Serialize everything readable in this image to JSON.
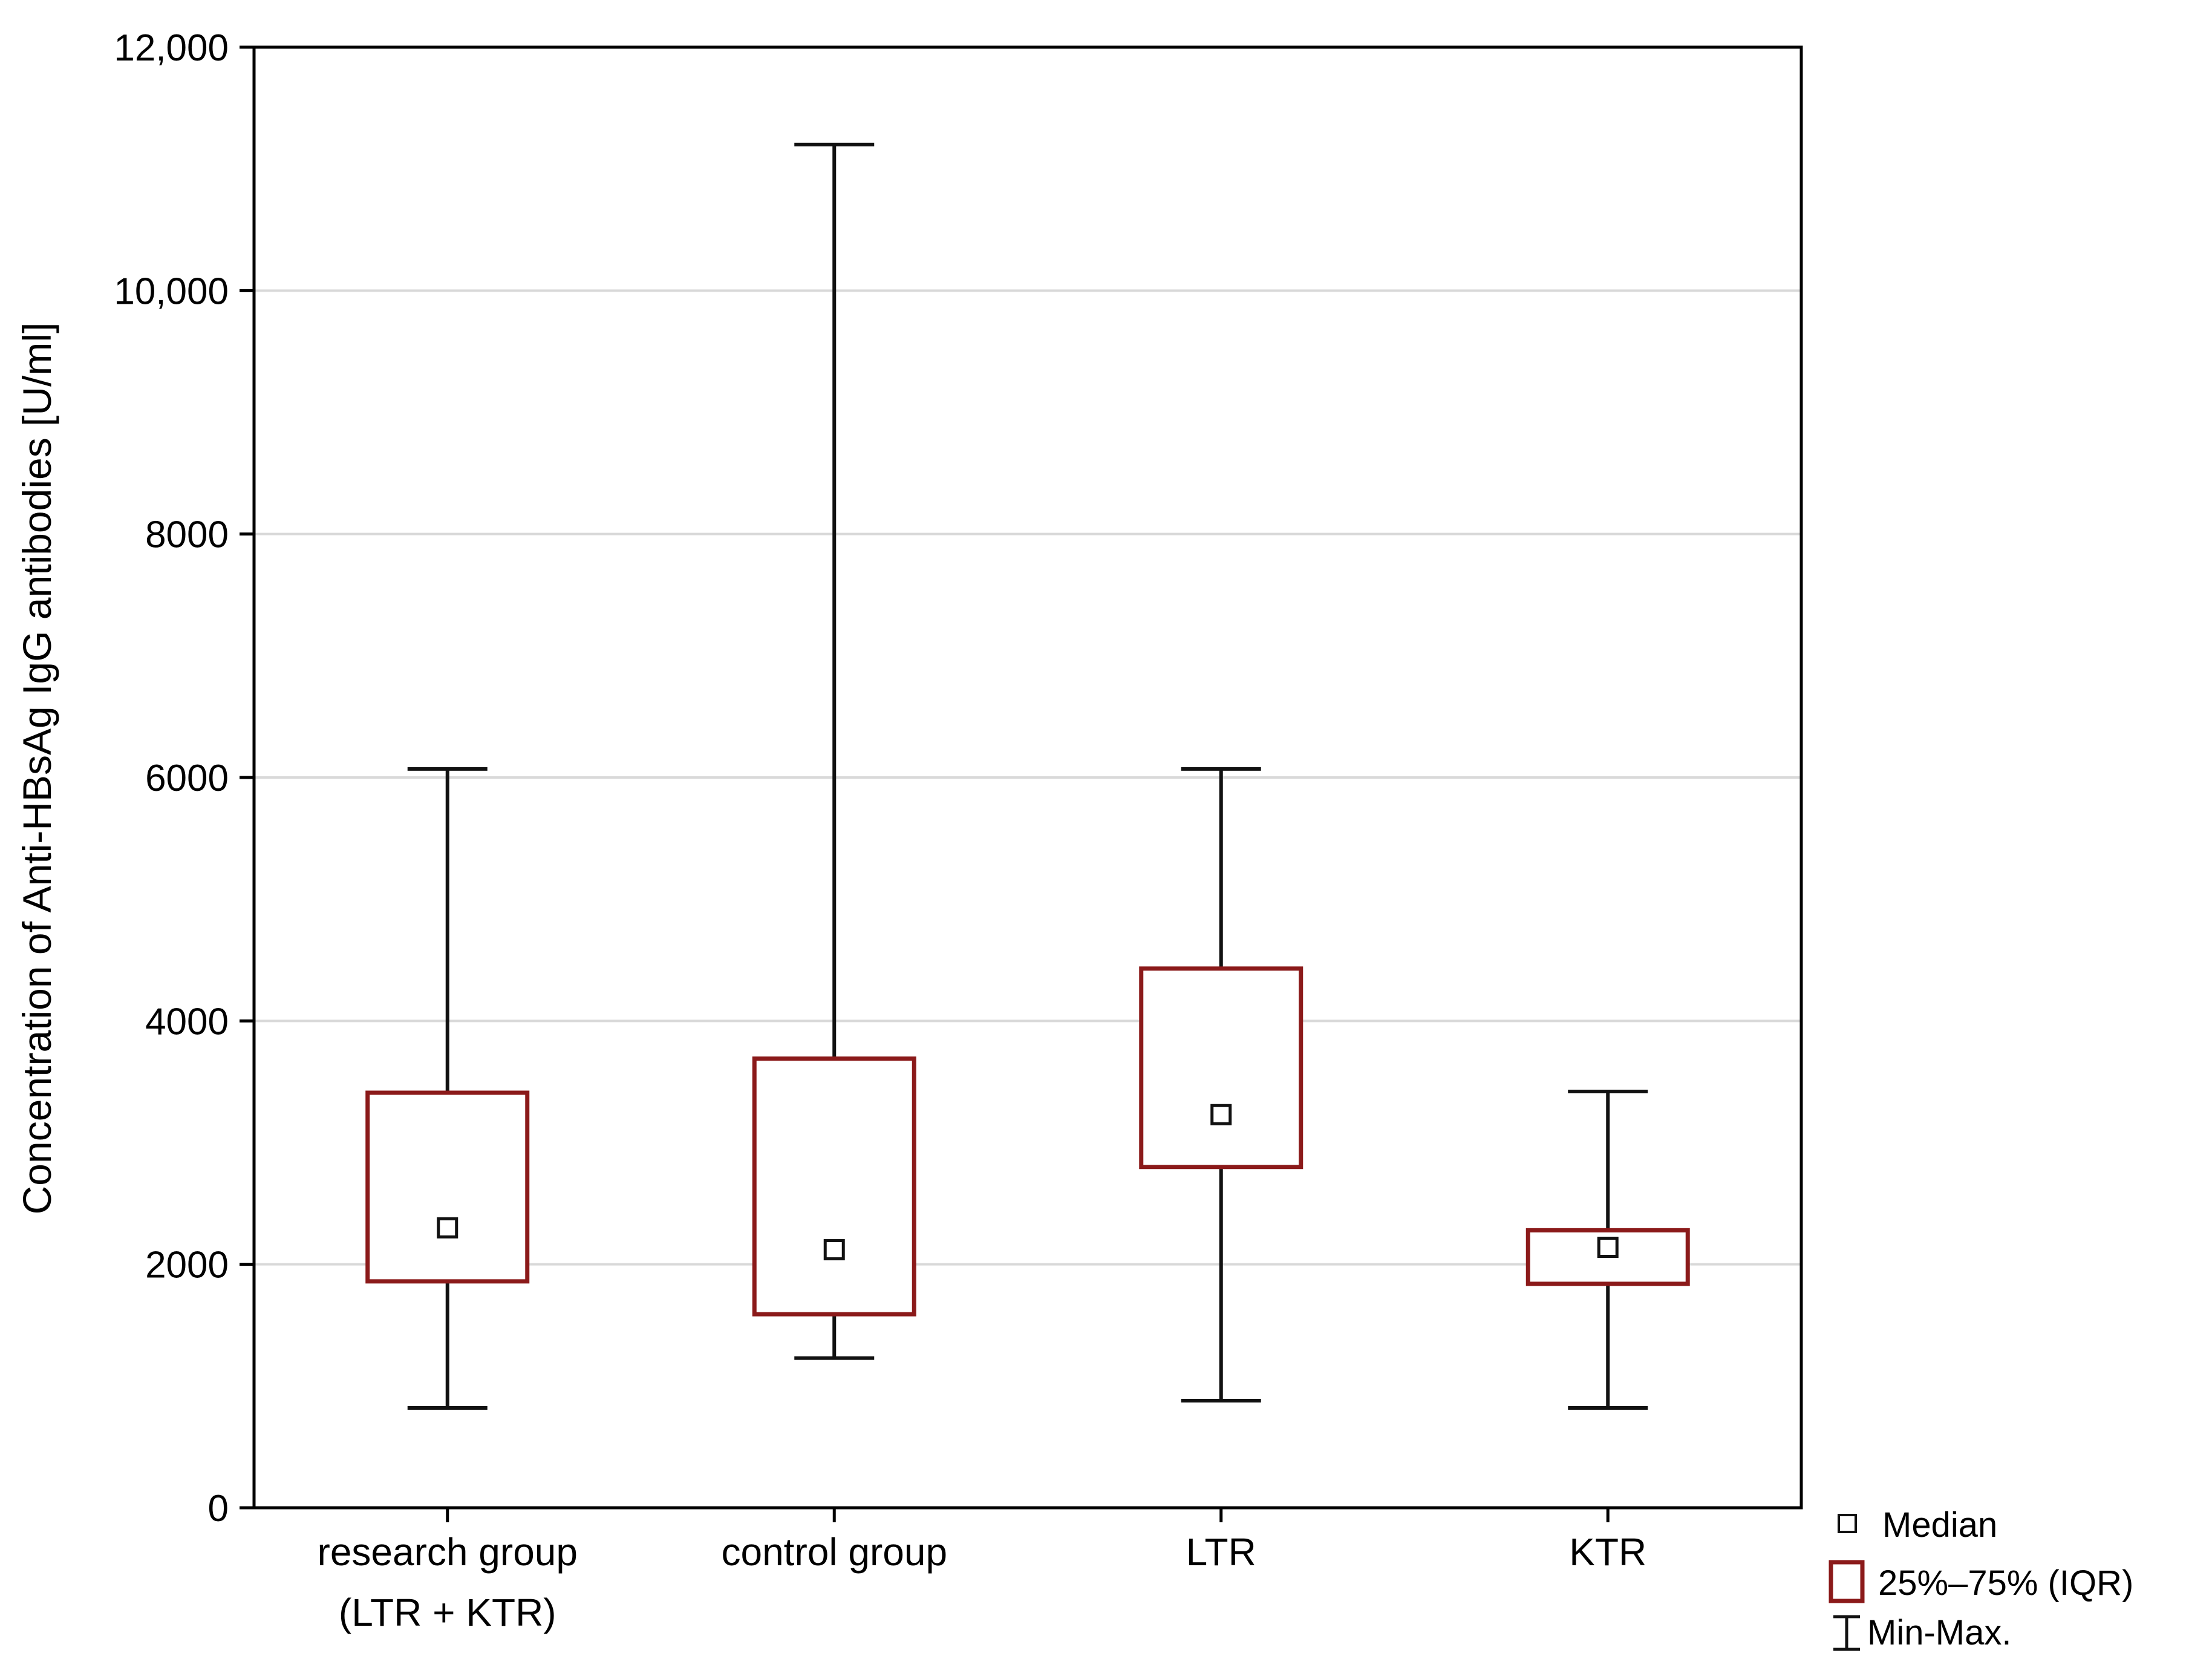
{
  "figure": {
    "background": "#ffffff"
  },
  "chart_data": {
    "type": "box",
    "title": "",
    "ylabel": "Concentration of Anti-HBsAg IgG antibodies [U/ml]",
    "xlabel": "",
    "ylim": [
      0,
      12000
    ],
    "yticks": [
      0,
      2000,
      4000,
      6000,
      8000,
      10000,
      12000
    ],
    "ytick_labels": [
      "0",
      "2000",
      "4000",
      "6000",
      "8000",
      "10,000",
      "12,000"
    ],
    "grid_values": [
      2000,
      4000,
      6000,
      8000,
      10000
    ],
    "grid": "horizontal",
    "categories": [
      [
        "research group",
        "(LTR + KTR)"
      ],
      [
        "control group"
      ],
      [
        "LTR"
      ],
      [
        "KTR"
      ]
    ],
    "boxes": [
      {
        "name": "research group (LTR + KTR)",
        "min": 820,
        "q1": 1860,
        "median": 2300,
        "q3": 3410,
        "max": 6070
      },
      {
        "name": "control group",
        "min": 1230,
        "q1": 1590,
        "median": 2120,
        "q3": 3690,
        "max": 11200
      },
      {
        "name": "LTR",
        "min": 880,
        "q1": 2800,
        "median": 3230,
        "q3": 4430,
        "max": 6070
      },
      {
        "name": "KTR",
        "min": 820,
        "q1": 1840,
        "median": 2140,
        "q3": 2280,
        "max": 3420
      }
    ],
    "legend": {
      "position": "bottom-right",
      "items": [
        {
          "symbol": "median-square-marker",
          "label": "Median"
        },
        {
          "symbol": "iqr-box-marker",
          "label": "25%–75% (IQR)"
        },
        {
          "symbol": "minmax-whisker-marker",
          "label": "Min-Max."
        }
      ]
    },
    "colors": {
      "box_border": "#8b1a1a",
      "box_fill": "#ffffff",
      "whisker": "#111111",
      "median_marker_border": "#111111",
      "median_marker_fill": "#ffffff",
      "grid": "#d9d9d9",
      "axis": "#000000",
      "text": "#000000",
      "background": "#ffffff"
    }
  }
}
